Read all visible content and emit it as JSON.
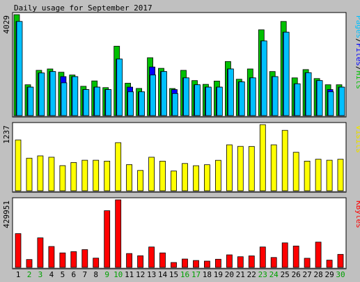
{
  "chart_data": {
    "type": "bar",
    "title": "Daily usage for September 2017",
    "categories": [
      "1",
      "2",
      "3",
      "4",
      "5",
      "6",
      "7",
      "8",
      "9",
      "10",
      "11",
      "12",
      "13",
      "14",
      "15",
      "16",
      "17",
      "18",
      "19",
      "20",
      "21",
      "22",
      "23",
      "24",
      "25",
      "26",
      "27",
      "28",
      "29",
      "30"
    ],
    "weekend_days": [
      "2",
      "3",
      "9",
      "10",
      "16",
      "17",
      "23",
      "24",
      "30"
    ],
    "colors": {
      "hits": "#00C000",
      "files": "#0000FF",
      "pages": "#00C0FF",
      "visits": "#FFFF00",
      "kbytes": "#FF0000",
      "weekday_label": "#000000",
      "weekend_label": "#00A000",
      "background": "#C0C0C0",
      "panel": "#FFFFFF"
    },
    "panels": [
      {
        "id": "hits",
        "max_label": "4029",
        "ylim": [
          0,
          4029
        ],
        "legend": [
          {
            "text": "Pages",
            "color": "#00C0FF"
          },
          {
            "text": "/",
            "color": "#000000"
          },
          {
            "text": "Files",
            "color": "#0000FF"
          },
          {
            "text": "/",
            "color": "#000000"
          },
          {
            "text": "Hits",
            "color": "#00C000"
          }
        ],
        "series": [
          {
            "name": "Hits",
            "color": "#00C000",
            "values": [
              4029,
              1232,
              1807,
              1862,
              1732,
              1620,
              1171,
              1385,
              1116,
              2770,
              1293,
              1083,
              2308,
              1888,
              1080,
              1807,
              1398,
              1247,
              1378,
              2160,
              1450,
              1862,
              3423,
              1760,
              3758,
              1507,
              1836,
              1479,
              1232,
              1232
            ]
          },
          {
            "name": "Files",
            "color": "#0000FF",
            "values": [
              3758,
              1136,
              1700,
              1760,
              1555,
              1555,
              1040,
              1136,
              1040,
              2256,
              1136,
              950,
              1940,
              1760,
              1040,
              1507,
              1232,
              1136,
              1136,
              1862,
              1345,
              1507,
              2980,
              1555,
              3330,
              1271,
              1711,
              1398,
              1040,
              1136
            ]
          },
          {
            "name": "Pages",
            "color": "#00C0FF",
            "values": [
              3758,
              1136,
              1700,
              1760,
              1310,
              1555,
              1040,
              1136,
              1040,
              2256,
              950,
              950,
              1620,
              1760,
              880,
              1507,
              1232,
              1136,
              1136,
              1862,
              1345,
              1507,
              2980,
              1555,
              3330,
              1271,
              1711,
              1398,
              950,
              1136
            ]
          }
        ]
      },
      {
        "id": "visits",
        "max_label": "1237",
        "ylim": [
          0,
          1237
        ],
        "legend": [
          {
            "text": "Visits",
            "color": "#FFFF00"
          }
        ],
        "series": [
          {
            "name": "Visits",
            "color": "#FFFF00",
            "values": [
              950,
              610,
              653,
              627,
              470,
              529,
              571,
              571,
              555,
              900,
              490,
              380,
              627,
              555,
              370,
              510,
              469,
              487,
              570,
              860,
              831,
              830,
              1237,
              860,
              1130,
              720,
              555,
              590,
              571,
              590
            ]
          }
        ]
      },
      {
        "id": "kbytes",
        "max_label": "429951",
        "ylim": [
          0,
          429951
        ],
        "legend": [
          {
            "text": "KBytes",
            "color": "#FF0000"
          }
        ],
        "series": [
          {
            "name": "KBytes",
            "color": "#FF0000",
            "values": [
              215000,
              50000,
              188000,
              133000,
              92000,
              100000,
              113000,
              59000,
              361000,
              429951,
              88000,
              74000,
              130000,
              92000,
              31000,
              53000,
              44000,
              40000,
              52000,
              80000,
              68000,
              73000,
              130000,
              63000,
              156000,
              136000,
              58000,
              161000,
              46000,
              83000
            ]
          }
        ]
      }
    ]
  }
}
